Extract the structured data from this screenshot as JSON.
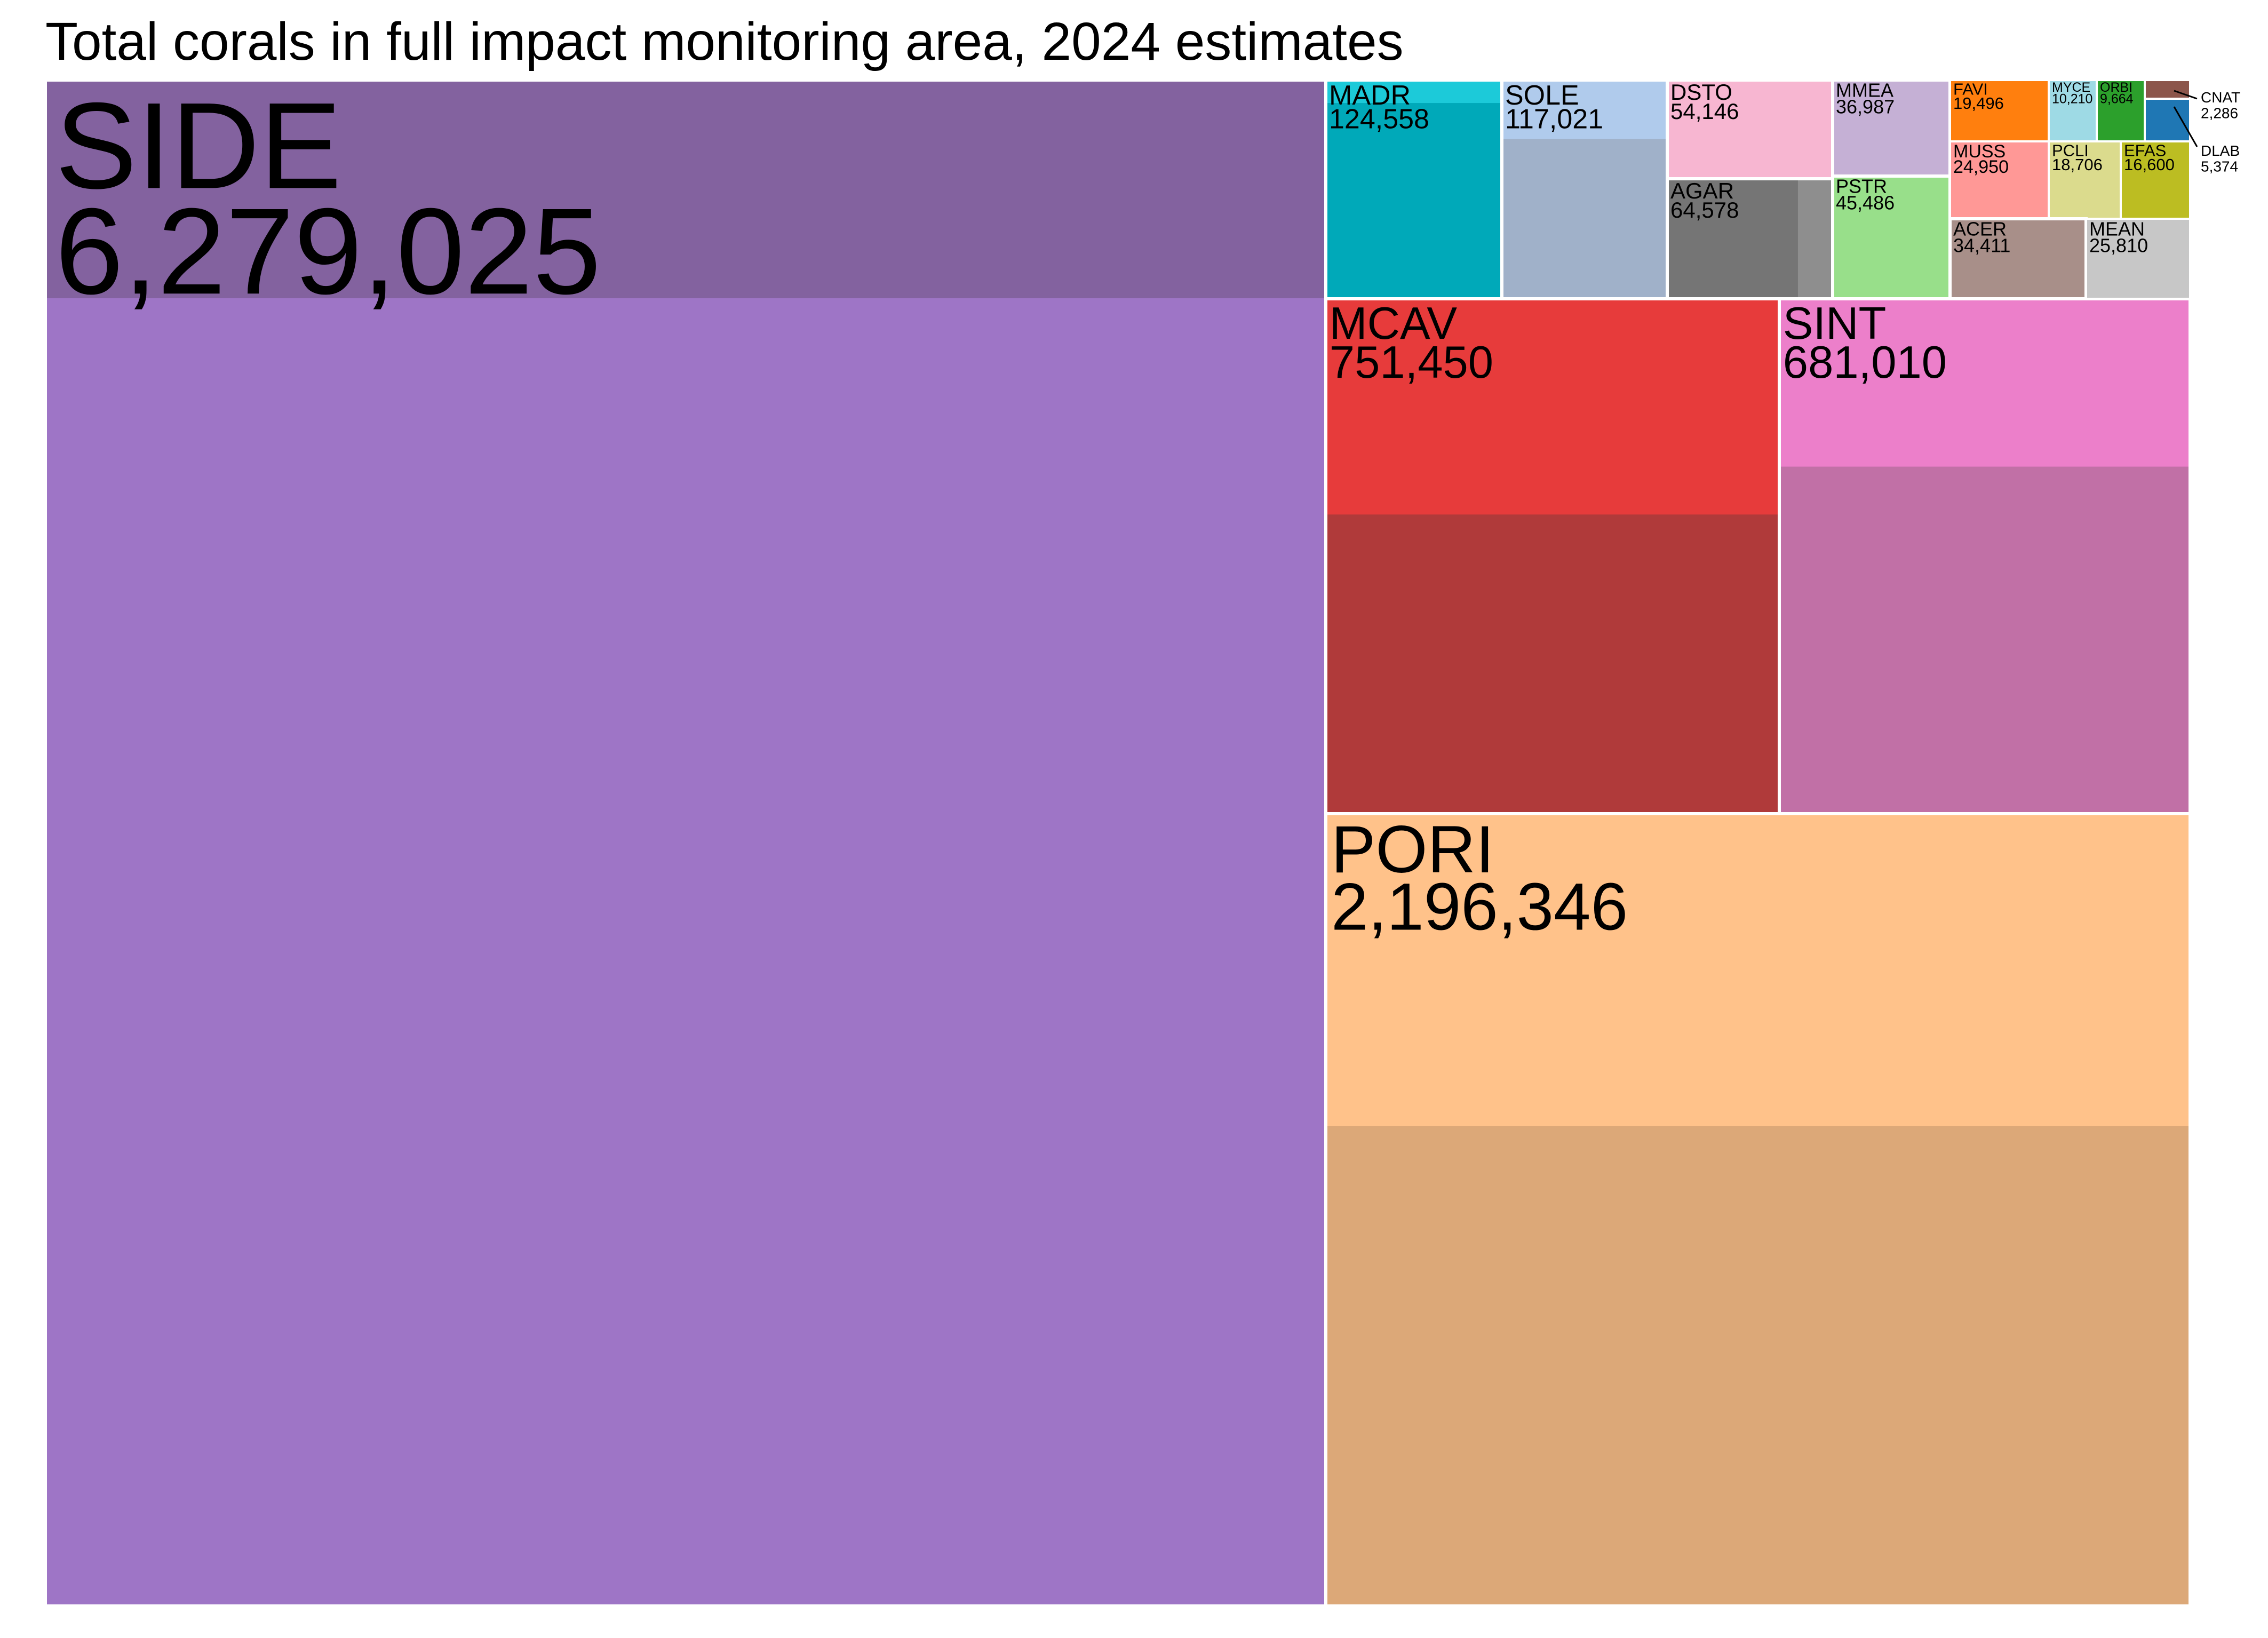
{
  "title": "Total corals in full impact monitoring area, 2024 estimates",
  "chart_data": {
    "type": "treemap",
    "title": "Total corals in full impact monitoring area, 2024 estimates",
    "cells": [
      {
        "code": "SIDE",
        "value": "6,279,025",
        "total": 6279025,
        "color": "#9e75c6",
        "band_color": "#83629f",
        "band_fraction": 0.143
      },
      {
        "code": "PORI",
        "value": "2,196,346",
        "total": 2196346,
        "color": "#ffc28a",
        "band_color": "#dca878",
        "band_fraction": 0.394
      },
      {
        "code": "MCAV",
        "value": "751,450",
        "total": 751450,
        "color": "#e73b3b",
        "band_color": "#b03a3a",
        "band_fraction": 0.419
      },
      {
        "code": "SINT",
        "value": "681,010",
        "total": 681010,
        "color": "#ec7fca",
        "band_color": "#c170a6",
        "band_fraction": 0.326
      },
      {
        "code": "MADR",
        "value": "124,558",
        "total": 124558,
        "color": "#00a9b9",
        "band_color": "#1ccad9",
        "band_fraction": 0.105
      },
      {
        "code": "SOLE",
        "value": "117,021",
        "total": 117021,
        "color": "#a0b1c9",
        "band_color": "#b0cbec",
        "band_fraction": 0.27
      },
      {
        "code": "DSTO",
        "value": "54,146",
        "total": 54146,
        "color": "#f7b6d1",
        "band_color": "#f7b6d1",
        "band_fraction": 0
      },
      {
        "code": "AGAR",
        "value": "64,578",
        "total": 64578,
        "color": "#757575",
        "band_color": "#8e8e8e",
        "band_fraction": 0
      },
      {
        "code": "MMEA",
        "value": "36,987",
        "total": 36987,
        "color": "#c5b0d5",
        "band_color": "#c5b0d5",
        "band_fraction": 0
      },
      {
        "code": "PSTR",
        "value": "45,486",
        "total": 45486,
        "color": "#98df8a",
        "band_color": "#98df8a",
        "band_fraction": 0
      },
      {
        "code": "FAVI",
        "value": "19,496",
        "total": 19496,
        "color": "#ff7f0e",
        "band_color": "#ff7f0e",
        "band_fraction": 0
      },
      {
        "code": "MYCE",
        "value": "10,210",
        "total": 10210,
        "color": "#9edae5",
        "band_color": "#9edae5",
        "band_fraction": 0
      },
      {
        "code": "ORBI",
        "value": "9,664",
        "total": 9664,
        "color": "#2ca02c",
        "band_color": "#2ca02c",
        "band_fraction": 0
      },
      {
        "code": "MUSS",
        "value": "24,950",
        "total": 24950,
        "color": "#ff9896",
        "band_color": "#ff9896",
        "band_fraction": 0
      },
      {
        "code": "PCLI",
        "value": "18,706",
        "total": 18706,
        "color": "#dbdb8d",
        "band_color": "#dbdb8d",
        "band_fraction": 0
      },
      {
        "code": "EFAS",
        "value": "16,600",
        "total": 16600,
        "color": "#bcbd22",
        "band_color": "#bcbd22",
        "band_fraction": 0
      },
      {
        "code": "ACER",
        "value": "34,411",
        "total": 34411,
        "color": "#a88f89",
        "band_color": "#a88f89",
        "band_fraction": 0
      },
      {
        "code": "MEAN",
        "value": "25,810",
        "total": 25810,
        "color": "#c7c7c7",
        "band_color": "#c7c7c7",
        "band_fraction": 0
      },
      {
        "code": "CNAT",
        "value": "2,286",
        "total": 2286,
        "color": "#8c564b",
        "band_color": "#8c564b",
        "band_fraction": 0
      },
      {
        "code": "DLAB",
        "value": "5,374",
        "total": 5374,
        "color": "#1f77b4",
        "band_color": "#1f77b4",
        "band_fraction": 0
      }
    ]
  }
}
